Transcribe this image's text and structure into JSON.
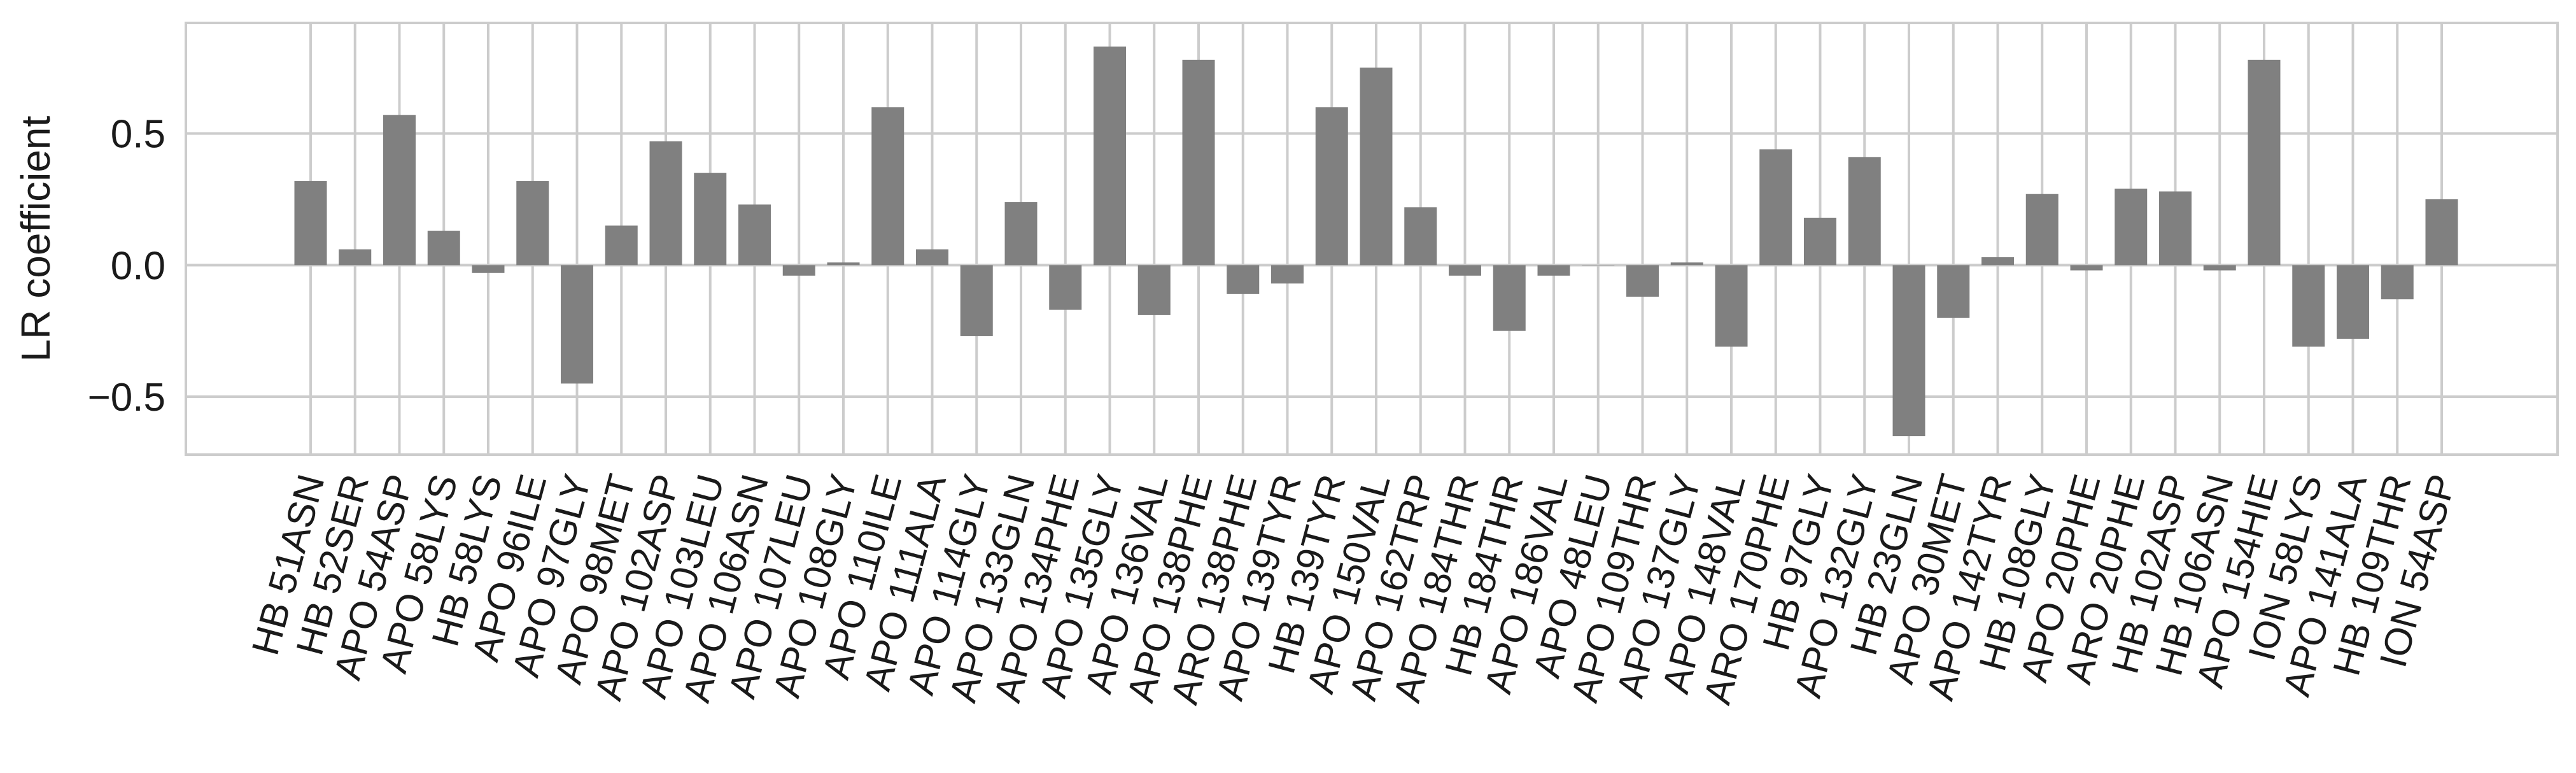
{
  "chart_data": {
    "type": "bar",
    "title": "",
    "xlabel": "",
    "ylabel": "LR coefficient",
    "ylim": [
      -0.72,
      0.92
    ],
    "yticks": [
      -0.5,
      0.0,
      0.5
    ],
    "ytick_labels": [
      "−0.5",
      "0.0",
      "0.5"
    ],
    "grid": true,
    "bar_color": "#808080",
    "categories": [
      "HB 51ASN",
      "HB 52SER",
      "APO 54ASP",
      "APO 58LYS",
      "HB 58LYS",
      "APO 96ILE",
      "APO 97GLY",
      "APO 98MET",
      "APO 102ASP",
      "APO 103LEU",
      "APO 106ASN",
      "APO 107LEU",
      "APO 108GLY",
      "APO 110ILE",
      "APO 111ALA",
      "APO 114GLY",
      "APO 133GLN",
      "APO 134PHE",
      "APO 135GLY",
      "APO 136VAL",
      "APO 138PHE",
      "ARO 138PHE",
      "APO 139TYR",
      "HB 139TYR",
      "APO 150VAL",
      "APO 162TRP",
      "APO 184THR",
      "HB 184THR",
      "APO 186VAL",
      "APO 48LEU",
      "APO 109THR",
      "APO 137GLY",
      "APO 148VAL",
      "ARO 170PHE",
      "HB 97GLY",
      "APO 132GLY",
      "HB 23GLN",
      "APO 30MET",
      "APO 142TYR",
      "HB 108GLY",
      "APO 20PHE",
      "ARO 20PHE",
      "HB 102ASP",
      "HB 106ASN",
      "APO 154HIE",
      "ION 58LYS",
      "APO 141ALA",
      "HB 109THR",
      "ION 54ASP"
    ],
    "values": [
      0.32,
      0.06,
      0.57,
      0.13,
      -0.03,
      0.32,
      -0.45,
      0.15,
      0.47,
      0.35,
      0.23,
      -0.04,
      0.01,
      0.6,
      0.06,
      -0.27,
      0.24,
      -0.17,
      0.83,
      -0.19,
      0.78,
      -0.11,
      -0.07,
      0.6,
      0.75,
      0.22,
      -0.04,
      -0.25,
      -0.04,
      0.0,
      -0.12,
      0.01,
      -0.31,
      0.44,
      0.18,
      0.41,
      -0.65,
      -0.2,
      0.03,
      0.27,
      -0.02,
      0.29,
      0.28,
      -0.02,
      0.78,
      -0.31,
      -0.28,
      -0.13,
      0.25
    ]
  }
}
